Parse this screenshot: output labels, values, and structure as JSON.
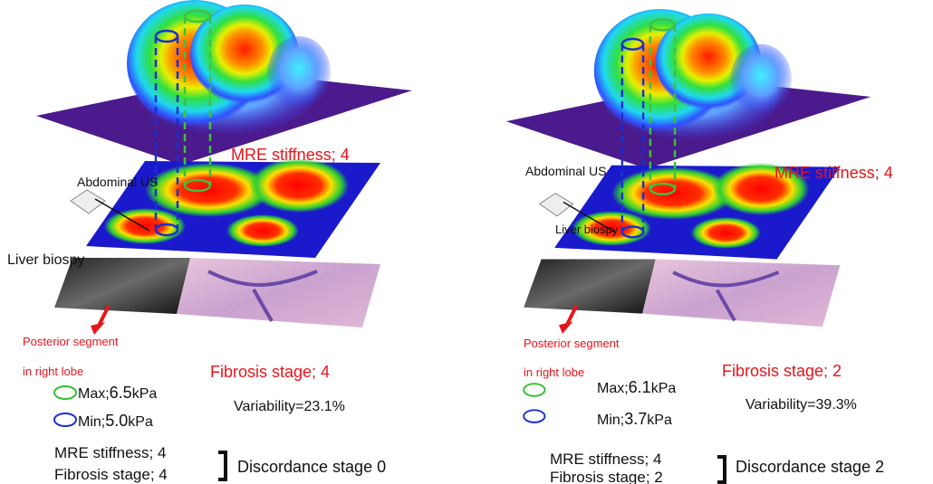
{
  "panels": [
    {
      "mre_label": "MRE stiffness; 4",
      "us_label": "Abdominal US",
      "biopsy_label": "Liver biospy",
      "segment_line1": "Posterior segment",
      "segment_line2": "in right lobe",
      "fibrosis_label": "Fibrosis stage; 4",
      "max": {
        "label": "Max;",
        "value": "6.5",
        "unit": "kPa"
      },
      "min": {
        "label": "Min;",
        "value": "5.0",
        "unit": "kPa"
      },
      "variability": "Variability=23.1%",
      "summary": {
        "mre": "MRE stiffness; 4",
        "fibrosis": "Fibrosis stage; 4",
        "discordance": "Discordance stage 0"
      }
    },
    {
      "mre_label": "MRE stiffness; 4",
      "us_label": "Abdominal US",
      "biopsy_label": "Liver biospy",
      "segment_line1": "Posterior segment",
      "segment_line2": "in right lobe",
      "fibrosis_label": "Fibrosis stage; 2",
      "max": {
        "label": "Max;",
        "value": "6.1",
        "unit": "kPa"
      },
      "min": {
        "label": "Min;",
        "value": "3.7",
        "unit": "kPa"
      },
      "variability": "Variability=39.3%",
      "summary": {
        "mre": "MRE stiffness; 4",
        "fibrosis": "Fibrosis stage; 2",
        "discordance": "Discordance stage 2"
      }
    }
  ]
}
